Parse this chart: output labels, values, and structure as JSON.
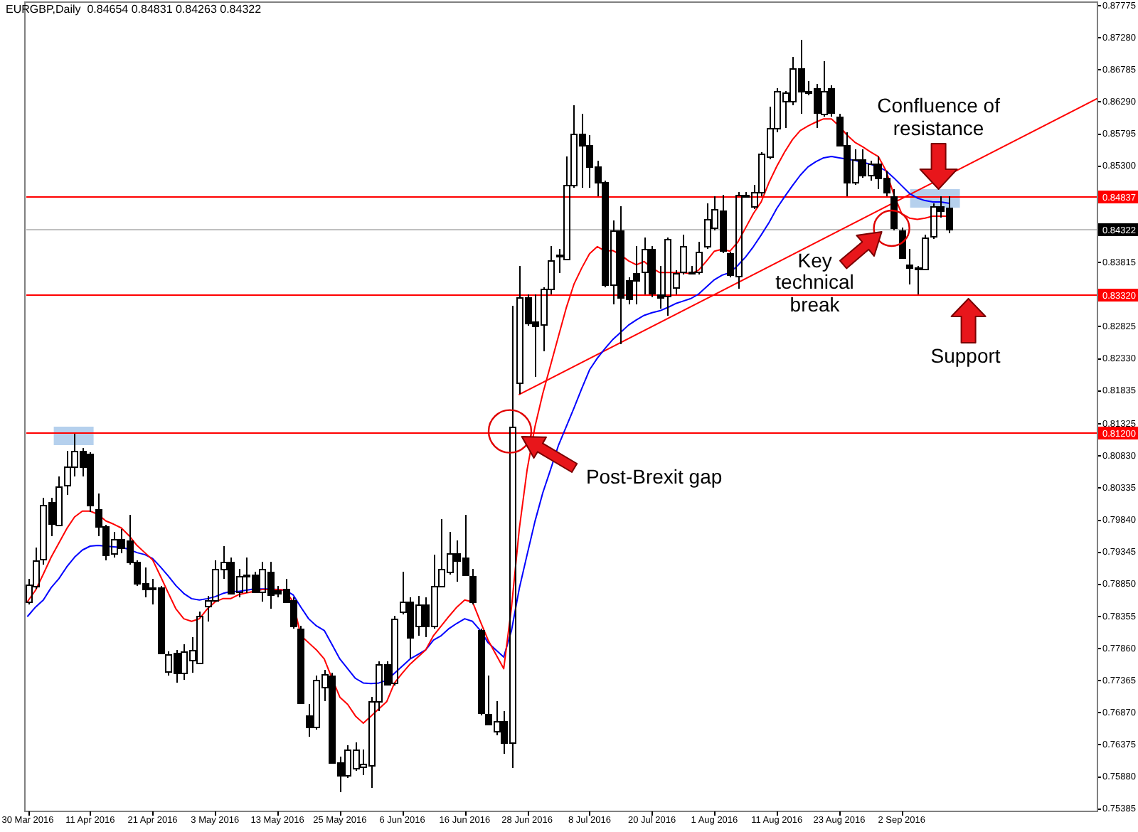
{
  "chart_data": {
    "type": "candlestick",
    "title": "EURGBP,Daily  0.84654 0.84831 0.84263 0.84322",
    "categories": [
      "30 Mar 2016",
      null,
      null,
      null,
      null,
      null,
      null,
      null,
      "11 Apr 2016",
      null,
      null,
      null,
      null,
      null,
      null,
      null,
      "21 Apr 2016",
      null,
      null,
      null,
      null,
      null,
      null,
      null,
      "3 May 2016",
      null,
      null,
      null,
      null,
      null,
      null,
      null,
      "13 May 2016",
      null,
      null,
      null,
      null,
      null,
      null,
      null,
      "25 May 2016",
      null,
      null,
      null,
      null,
      null,
      null,
      null,
      "6 Jun 2016",
      null,
      null,
      null,
      null,
      null,
      null,
      null,
      "16 Jun 2016",
      null,
      null,
      null,
      null,
      null,
      null,
      null,
      "28 Jun 2016",
      null,
      null,
      null,
      null,
      null,
      null,
      null,
      "8 Jul 2016",
      null,
      null,
      null,
      null,
      null,
      null,
      null,
      "20 Jul 2016",
      null,
      null,
      null,
      null,
      null,
      null,
      null,
      "1 Aug 2016",
      null,
      null,
      null,
      null,
      null,
      null,
      null,
      "11 Aug 2016",
      null,
      null,
      null,
      null,
      null,
      null,
      null,
      "23 Aug 2016",
      null,
      null,
      null,
      null,
      null,
      null,
      null,
      "2 Sep 2016",
      null,
      null,
      null,
      null,
      null,
      null,
      null,
      null,
      null,
      null,
      null,
      null,
      null,
      null,
      null,
      null,
      null,
      null,
      null,
      null,
      null,
      null,
      null,
      null,
      null
    ],
    "ohlc": [
      [
        0.7859,
        0.7894,
        0.7854,
        0.7885
      ],
      [
        0.7883,
        0.7942,
        0.7879,
        0.7923
      ],
      [
        0.7923,
        0.8018,
        0.7916,
        0.8007
      ],
      [
        0.8012,
        0.8018,
        0.796,
        0.798
      ],
      [
        0.7978,
        0.8051,
        0.7975,
        0.8037
      ],
      [
        0.8037,
        0.8091,
        0.8022,
        0.8066
      ],
      [
        0.8066,
        0.8117,
        0.8051,
        0.8091
      ],
      [
        0.8091,
        0.8095,
        0.8051,
        0.8066
      ],
      [
        0.8086,
        0.8088,
        0.7997,
        0.8007
      ],
      [
        0.8002,
        0.8026,
        0.796,
        0.7975
      ],
      [
        0.7975,
        0.7978,
        0.7923,
        0.7931
      ],
      [
        0.7934,
        0.7967,
        0.7927,
        0.7956
      ],
      [
        0.7956,
        0.7971,
        0.7934,
        0.7942
      ],
      [
        0.7953,
        0.7993,
        0.7916,
        0.792
      ],
      [
        0.792,
        0.7923,
        0.7883,
        0.7887
      ],
      [
        0.7887,
        0.7912,
        0.7865,
        0.7879
      ],
      [
        0.788,
        0.7894,
        0.7854,
        0.7879
      ],
      [
        0.7881,
        0.7883,
        0.7777,
        0.7781
      ],
      [
        0.775,
        0.7781,
        0.7744,
        0.7777
      ],
      [
        0.7779,
        0.7784,
        0.7733,
        0.7748
      ],
      [
        0.7748,
        0.7792,
        0.7737,
        0.7782
      ],
      [
        0.7768,
        0.7803,
        0.7748,
        0.7784
      ],
      [
        0.7764,
        0.7843,
        0.7762,
        0.7836
      ],
      [
        0.7852,
        0.7868,
        0.7828,
        0.7861
      ],
      [
        0.7861,
        0.7923,
        0.7858,
        0.7909
      ],
      [
        0.7909,
        0.7945,
        0.7894,
        0.792
      ],
      [
        0.792,
        0.7927,
        0.7869,
        0.7872
      ],
      [
        0.7872,
        0.7909,
        0.7866,
        0.7897
      ],
      [
        0.79,
        0.7927,
        0.7872,
        0.7897
      ],
      [
        0.79,
        0.7905,
        0.7871,
        0.7874
      ],
      [
        0.7874,
        0.792,
        0.7858,
        0.7909
      ],
      [
        0.7905,
        0.792,
        0.7847,
        0.7869
      ],
      [
        0.7876,
        0.7883,
        0.7866,
        0.7872
      ],
      [
        0.7878,
        0.7894,
        0.7856,
        0.7859
      ],
      [
        0.7861,
        0.7865,
        0.7817,
        0.7821
      ],
      [
        0.7817,
        0.7821,
        0.7702,
        0.7704
      ],
      [
        0.7682,
        0.77,
        0.7649,
        0.7664
      ],
      [
        0.7664,
        0.7744,
        0.7662,
        0.7737
      ],
      [
        0.7727,
        0.7754,
        0.7704,
        0.7746
      ],
      [
        0.7744,
        0.7748,
        0.7608,
        0.761
      ],
      [
        0.761,
        0.762,
        0.7565,
        0.7591
      ],
      [
        0.7591,
        0.7638,
        0.7587,
        0.7631
      ],
      [
        0.7602,
        0.7642,
        0.7598,
        0.7631
      ],
      [
        0.7605,
        0.7631,
        0.7591,
        0.7609
      ],
      [
        0.7605,
        0.7711,
        0.7572,
        0.7704
      ],
      [
        0.7704,
        0.7766,
        0.7689,
        0.7762
      ],
      [
        0.7763,
        0.7766,
        0.773,
        0.7733
      ],
      [
        0.7733,
        0.7836,
        0.773,
        0.7832
      ],
      [
        0.7843,
        0.7905,
        0.7839,
        0.7858
      ],
      [
        0.7858,
        0.7865,
        0.777,
        0.7803
      ],
      [
        0.7821,
        0.7868,
        0.7806,
        0.7854
      ],
      [
        0.7854,
        0.7865,
        0.7803,
        0.7821
      ],
      [
        0.7821,
        0.7931,
        0.7817,
        0.7883
      ],
      [
        0.7883,
        0.7986,
        0.788,
        0.7909
      ],
      [
        0.7905,
        0.7967,
        0.7901,
        0.7934
      ],
      [
        0.7934,
        0.7952,
        0.789,
        0.7923
      ],
      [
        0.7927,
        0.7993,
        0.7898,
        0.7901
      ],
      [
        0.7898,
        0.7909,
        0.7854,
        0.7858
      ],
      [
        0.7814,
        0.7817,
        0.7682,
        0.7686
      ],
      [
        0.7686,
        0.7744,
        0.7668,
        0.7671
      ],
      [
        0.766,
        0.7704,
        0.7653,
        0.7675
      ],
      [
        0.7675,
        0.7689,
        0.7624,
        0.7642
      ],
      [
        0.7642,
        0.8315,
        0.7602,
        0.8128
      ],
      [
        0.8198,
        0.8377,
        0.8178,
        0.8329
      ],
      [
        0.8329,
        0.8333,
        0.8285,
        0.8289
      ],
      [
        0.8291,
        0.8333,
        0.8205,
        0.8285
      ],
      [
        0.8285,
        0.8344,
        0.8245,
        0.834
      ],
      [
        0.834,
        0.8406,
        0.8333,
        0.8384
      ],
      [
        0.8391,
        0.8402,
        0.8366,
        0.8393
      ],
      [
        0.8388,
        0.8545,
        0.8384,
        0.8501
      ],
      [
        0.8501,
        0.8625,
        0.8497,
        0.8581
      ],
      [
        0.8581,
        0.8611,
        0.8497,
        0.8563
      ],
      [
        0.8563,
        0.8578,
        0.8497,
        0.853
      ],
      [
        0.853,
        0.8538,
        0.8483,
        0.8505
      ],
      [
        0.8505,
        0.8508,
        0.8344,
        0.8348
      ],
      [
        0.8348,
        0.8446,
        0.8318,
        0.8432
      ],
      [
        0.8432,
        0.8468,
        0.8256,
        0.8329
      ],
      [
        0.8355,
        0.8358,
        0.8318,
        0.8326
      ],
      [
        0.8366,
        0.8406,
        0.8318,
        0.8355
      ],
      [
        0.8366,
        0.842,
        0.8333,
        0.8402
      ],
      [
        0.8402,
        0.8406,
        0.8329,
        0.8333
      ],
      [
        0.8333,
        0.8377,
        0.8311,
        0.8329
      ],
      [
        0.8329,
        0.8421,
        0.83,
        0.8417
      ],
      [
        0.8344,
        0.837,
        0.8333,
        0.8366
      ],
      [
        0.8366,
        0.8424,
        0.8362,
        0.8406
      ],
      [
        0.8366,
        0.8377,
        0.8362,
        0.8368
      ],
      [
        0.8369,
        0.8413,
        0.8362,
        0.8399
      ],
      [
        0.8406,
        0.8472,
        0.8402,
        0.8448
      ],
      [
        0.8435,
        0.8483,
        0.8432,
        0.8463
      ],
      [
        0.8461,
        0.8486,
        0.8395,
        0.8399
      ],
      [
        0.8395,
        0.8399,
        0.8359,
        0.8362
      ],
      [
        0.8362,
        0.849,
        0.834,
        0.8486
      ],
      [
        0.8484,
        0.849,
        0.8483,
        0.8486
      ],
      [
        0.8468,
        0.8501,
        0.8464,
        0.849
      ],
      [
        0.849,
        0.8552,
        0.8483,
        0.8549
      ],
      [
        0.8545,
        0.8622,
        0.8541,
        0.8589
      ],
      [
        0.8589,
        0.8651,
        0.8583,
        0.8647
      ],
      [
        0.8629,
        0.8647,
        0.8588,
        0.8643
      ],
      [
        0.8629,
        0.8698,
        0.8625,
        0.868
      ],
      [
        0.868,
        0.8724,
        0.8611,
        0.8644
      ],
      [
        0.8647,
        0.8662,
        0.864,
        0.8647
      ],
      [
        0.8651,
        0.8658,
        0.8589,
        0.8614
      ],
      [
        0.8611,
        0.8691,
        0.8607,
        0.8647
      ],
      [
        0.8651,
        0.8655,
        0.8607,
        0.8614
      ],
      [
        0.8607,
        0.8611,
        0.856,
        0.8563
      ],
      [
        0.8563,
        0.8582,
        0.8483,
        0.8505
      ],
      [
        0.8505,
        0.8556,
        0.8501,
        0.8541
      ],
      [
        0.8541,
        0.8556,
        0.8512,
        0.8516
      ],
      [
        0.8516,
        0.8538,
        0.8508,
        0.8534
      ],
      [
        0.8534,
        0.8545,
        0.8494,
        0.8512
      ],
      [
        0.8512,
        0.8523,
        0.8483,
        0.849
      ],
      [
        0.8483,
        0.8494,
        0.8432,
        0.8435
      ],
      [
        0.8432,
        0.8435,
        0.8388,
        0.8391
      ],
      [
        0.8378,
        0.8402,
        0.8348,
        0.8374
      ],
      [
        0.8373,
        0.8377,
        0.8333,
        0.8373
      ],
      [
        0.8373,
        0.8424,
        0.8369,
        0.8421
      ],
      [
        0.8421,
        0.8472,
        0.8417,
        0.8468
      ],
      [
        0.8468,
        0.8483,
        0.845,
        0.8461
      ],
      [
        0.84654,
        0.84831,
        0.84263,
        0.84322
      ],
      null,
      null,
      null,
      null,
      null,
      null,
      null,
      null,
      null,
      null,
      null,
      null,
      null,
      null,
      null,
      null,
      null,
      null,
      null
    ],
    "series": [
      {
        "type": "line",
        "color": "#ff0000",
        "values": [
          0.7859,
          0.7876,
          0.7901,
          0.7927,
          0.7949,
          0.7971,
          0.7989,
          0.7998,
          0.7998,
          0.7993,
          0.7983,
          0.7978,
          0.7972,
          0.796,
          0.7945,
          0.7934,
          0.7923,
          0.7898,
          0.7872,
          0.7847,
          0.7832,
          0.7828,
          0.7832,
          0.7847,
          0.7858,
          0.7863,
          0.7863,
          0.7869,
          0.7872,
          0.7874,
          0.7877,
          0.7877,
          0.7877,
          0.7876,
          0.7858,
          0.7806,
          0.7795,
          0.7784,
          0.777,
          0.774,
          0.7711,
          0.77,
          0.7682,
          0.7671,
          0.7682,
          0.7693,
          0.7704,
          0.7733,
          0.7748,
          0.7762,
          0.7773,
          0.7784,
          0.7806,
          0.7821,
          0.7836,
          0.785,
          0.7861,
          0.7858,
          0.7828,
          0.7799,
          0.7777,
          0.7755,
          0.785,
          0.7971,
          0.8062,
          0.8128,
          0.8179,
          0.8223,
          0.8267,
          0.8311,
          0.8348,
          0.8373,
          0.8395,
          0.8406,
          0.8399,
          0.84,
          0.8393,
          0.8384,
          0.8378,
          0.8383,
          0.8373,
          0.8366,
          0.8366,
          0.8366,
          0.8366,
          0.8364,
          0.837,
          0.8384,
          0.8399,
          0.8402,
          0.8399,
          0.8413,
          0.8435,
          0.8457,
          0.8475,
          0.8505,
          0.853,
          0.8552,
          0.8571,
          0.8585,
          0.8592,
          0.8598,
          0.8603,
          0.8603,
          0.8592,
          0.8578,
          0.8567,
          0.856,
          0.8552,
          0.8545,
          0.8523,
          0.8486,
          0.8457,
          0.845,
          0.8448,
          0.845,
          0.8453,
          0.8453,
          0.8453,
          null,
          null,
          null,
          null,
          null,
          null,
          null,
          null,
          null,
          null,
          null,
          null,
          null,
          null,
          null,
          null,
          null,
          null,
          null
        ]
      },
      {
        "type": "line",
        "color": "#0000ff",
        "values": [
          0.7836,
          0.785,
          0.7861,
          0.788,
          0.7894,
          0.7912,
          0.7927,
          0.7938,
          0.7944,
          0.7945,
          0.7944,
          0.7943,
          0.7942,
          0.7939,
          0.7934,
          0.7931,
          0.7925,
          0.7912,
          0.7898,
          0.7883,
          0.7871,
          0.7863,
          0.7861,
          0.7863,
          0.7866,
          0.7871,
          0.7874,
          0.7874,
          0.7876,
          0.7878,
          0.7878,
          0.7878,
          0.7877,
          0.7876,
          0.7869,
          0.785,
          0.7832,
          0.7821,
          0.7814,
          0.7792,
          0.777,
          0.7755,
          0.774,
          0.7733,
          0.7732,
          0.7733,
          0.7737,
          0.7748,
          0.7759,
          0.777,
          0.7777,
          0.7784,
          0.7799,
          0.7806,
          0.7817,
          0.7825,
          0.7832,
          0.7828,
          0.7814,
          0.7795,
          0.7784,
          0.7773,
          0.7814,
          0.7879,
          0.7931,
          0.7982,
          0.8026,
          0.8062,
          0.8099,
          0.8128,
          0.8157,
          0.8187,
          0.8216,
          0.8234,
          0.8249,
          0.8263,
          0.8274,
          0.8285,
          0.8293,
          0.83,
          0.8304,
          0.8307,
          0.8312,
          0.8318,
          0.8322,
          0.8326,
          0.8333,
          0.8344,
          0.8355,
          0.8362,
          0.8366,
          0.8377,
          0.839,
          0.8406,
          0.8424,
          0.8443,
          0.8465,
          0.8483,
          0.85,
          0.8516,
          0.8529,
          0.8537,
          0.8543,
          0.8545,
          0.8543,
          0.8541,
          0.8539,
          0.8536,
          0.8533,
          0.8529,
          0.8523,
          0.8512,
          0.85,
          0.8488,
          0.8481,
          0.8477,
          0.8475,
          0.8475,
          0.8473,
          null,
          null,
          null,
          null,
          null,
          null,
          null,
          null,
          null,
          null,
          null,
          null,
          null,
          null,
          null,
          null,
          null,
          null,
          null
        ]
      },
      {
        "type": "line",
        "color": "#ff0000",
        "values": [
          null,
          null,
          null,
          null,
          null,
          null,
          null,
          null,
          null,
          null,
          null,
          null,
          null,
          null,
          null,
          null,
          null,
          null,
          null,
          null,
          null,
          null,
          null,
          null,
          null,
          null,
          null,
          null,
          null,
          null,
          null,
          null,
          null,
          null,
          null,
          null,
          null,
          null,
          null,
          null,
          null,
          null,
          null,
          null,
          null,
          null,
          null,
          null,
          null,
          null,
          null,
          null,
          null,
          null,
          null,
          null,
          null,
          null,
          null,
          null,
          null,
          null,
          null,
          0.8178,
          null,
          null,
          null,
          null,
          null,
          null,
          null,
          null,
          null,
          null,
          null,
          null,
          null,
          null,
          null,
          null,
          null,
          null,
          null,
          null,
          null,
          null,
          null,
          null,
          null,
          null,
          null,
          null,
          null,
          null,
          null,
          null,
          null,
          null,
          null,
          null,
          null,
          null,
          null,
          null,
          null,
          null,
          null,
          null,
          null,
          null,
          null,
          null,
          null,
          null,
          null,
          null,
          null,
          null,
          null,
          null,
          null,
          null,
          null,
          null,
          null,
          null,
          null,
          null,
          null,
          null,
          null,
          null,
          null,
          null,
          null,
          null,
          null,
          0.8634
        ]
      }
    ],
    "ylim": [
      0.7536,
      0.8782
    ],
    "yticks": [
      0.87775,
      {
        "value": 0.8728,
        "label": "0.87280"
      },
      0.86785,
      {
        "value": 0.8629,
        "label": "0.86290"
      },
      0.85795,
      {
        "value": 0.853,
        "label": "0.85300"
      },
      0.83815,
      0.82825,
      {
        "value": 0.8233,
        "label": "0.82330"
      },
      0.81835,
      0.81325,
      {
        "value": 0.8083,
        "label": "0.80830"
      },
      0.80335,
      {
        "value": 0.7984,
        "label": "0.79840"
      },
      0.79345,
      {
        "value": 0.7885,
        "label": "0.78850"
      },
      0.78355,
      {
        "value": 0.7786,
        "label": "0.77860"
      },
      0.77365,
      {
        "value": 0.7687,
        "label": "0.76870"
      },
      0.76375,
      {
        "value": 0.7588,
        "label": "0.75880"
      },
      0.75385
    ],
    "ref_lines": [
      {
        "axis": "y",
        "value": 0.84837,
        "label": "0.84837",
        "color": "#ff0000"
      },
      {
        "axis": "y",
        "value": 0.84322,
        "label": "0.84322",
        "color": "#c0c0c0"
      },
      {
        "axis": "y",
        "value": 0.8332,
        "label": "0.83320",
        "color": "#ff0000"
      },
      {
        "axis": "y",
        "value": 0.812,
        "label": "0.81200",
        "color": "#ff0000"
      }
    ],
    "annotations": [
      "Confluence of resistance",
      "Key technical break",
      "Support",
      "Post-Brexit gap"
    ],
    "marker": "none"
  }
}
